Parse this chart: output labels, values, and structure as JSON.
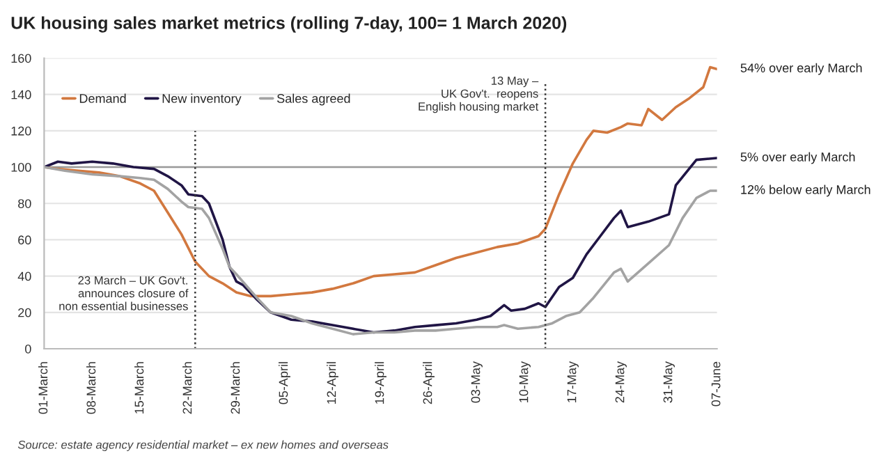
{
  "chart_data": {
    "type": "line",
    "title": "UK housing sales market metrics (rolling 7-day, 100= 1 March 2020)",
    "series": [
      {
        "name": "Demand",
        "color": "#d2783f",
        "x": [
          "2020-03-01",
          "2020-03-03",
          "2020-03-06",
          "2020-03-09",
          "2020-03-12",
          "2020-03-15",
          "2020-03-17",
          "2020-03-19",
          "2020-03-21",
          "2020-03-23",
          "2020-03-25",
          "2020-03-27",
          "2020-03-29",
          "2020-03-31",
          "2020-04-03",
          "2020-04-06",
          "2020-04-09",
          "2020-04-12",
          "2020-04-15",
          "2020-04-18",
          "2020-04-21",
          "2020-04-24",
          "2020-04-27",
          "2020-04-30",
          "2020-05-03",
          "2020-05-06",
          "2020-05-09",
          "2020-05-12",
          "2020-05-13",
          "2020-05-15",
          "2020-05-17",
          "2020-05-19",
          "2020-05-20",
          "2020-05-22",
          "2020-05-24",
          "2020-05-25",
          "2020-05-27",
          "2020-05-28",
          "2020-05-30",
          "2020-06-01",
          "2020-06-03",
          "2020-06-05",
          "2020-06-06",
          "2020-06-07"
        ],
        "values": [
          100,
          99,
          98,
          97,
          95,
          91,
          87,
          75,
          63,
          48,
          40,
          36,
          31,
          29,
          29,
          30,
          31,
          33,
          36,
          40,
          41,
          42,
          46,
          50,
          53,
          56,
          58,
          62,
          66,
          85,
          102,
          115,
          120,
          119,
          122,
          124,
          123,
          132,
          126,
          133,
          138,
          144,
          155,
          154
        ]
      },
      {
        "name": "New inventory",
        "color": "#201545",
        "x": [
          "2020-03-01",
          "2020-03-03",
          "2020-03-05",
          "2020-03-08",
          "2020-03-11",
          "2020-03-14",
          "2020-03-17",
          "2020-03-19",
          "2020-03-21",
          "2020-03-22",
          "2020-03-24",
          "2020-03-25",
          "2020-03-27",
          "2020-03-28",
          "2020-03-29",
          "2020-03-30",
          "2020-04-01",
          "2020-04-03",
          "2020-04-06",
          "2020-04-09",
          "2020-04-12",
          "2020-04-15",
          "2020-04-18",
          "2020-04-21",
          "2020-04-24",
          "2020-04-27",
          "2020-04-30",
          "2020-05-03",
          "2020-05-05",
          "2020-05-07",
          "2020-05-08",
          "2020-05-10",
          "2020-05-12",
          "2020-05-13",
          "2020-05-15",
          "2020-05-17",
          "2020-05-19",
          "2020-05-21",
          "2020-05-23",
          "2020-05-24",
          "2020-05-25",
          "2020-05-28",
          "2020-05-31",
          "2020-06-01",
          "2020-06-04",
          "2020-06-07"
        ],
        "values": [
          100,
          103,
          102,
          103,
          102,
          100,
          99,
          95,
          90,
          85,
          84,
          80,
          60,
          45,
          37,
          35,
          27,
          20,
          16,
          15,
          13,
          11,
          9,
          10,
          12,
          13,
          14,
          16,
          18,
          24,
          21,
          22,
          25,
          23,
          34,
          39,
          52,
          62,
          72,
          76,
          67,
          70,
          74,
          90,
          104,
          105
        ]
      },
      {
        "name": "Sales agreed",
        "color": "#a3a3a3",
        "x": [
          "2020-03-01",
          "2020-03-04",
          "2020-03-08",
          "2020-03-12",
          "2020-03-15",
          "2020-03-17",
          "2020-03-19",
          "2020-03-21",
          "2020-03-22",
          "2020-03-24",
          "2020-03-25",
          "2020-03-27",
          "2020-03-28",
          "2020-03-29",
          "2020-04-01",
          "2020-04-03",
          "2020-04-06",
          "2020-04-09",
          "2020-04-12",
          "2020-04-15",
          "2020-04-18",
          "2020-04-21",
          "2020-04-24",
          "2020-04-27",
          "2020-04-30",
          "2020-05-03",
          "2020-05-06",
          "2020-05-07",
          "2020-05-09",
          "2020-05-12",
          "2020-05-14",
          "2020-05-16",
          "2020-05-18",
          "2020-05-20",
          "2020-05-23",
          "2020-05-24",
          "2020-05-25",
          "2020-05-28",
          "2020-05-31",
          "2020-06-02",
          "2020-06-04",
          "2020-06-06",
          "2020-06-07"
        ],
        "values": [
          100,
          98,
          96,
          95,
          94,
          93,
          88,
          81,
          78,
          77,
          72,
          55,
          45,
          41,
          28,
          20,
          18,
          14,
          11,
          8,
          9,
          9,
          10,
          10,
          11,
          12,
          12,
          13,
          11,
          12,
          14,
          18,
          20,
          28,
          42,
          44,
          37,
          47,
          57,
          72,
          83,
          87,
          87
        ]
      }
    ],
    "xlim": [
      "2020-03-01",
      "2020-06-07"
    ],
    "xticks": [
      {
        "value": "2020-03-01",
        "label": "01-March"
      },
      {
        "value": "2020-03-08",
        "label": "08-March"
      },
      {
        "value": "2020-03-15",
        "label": "15-March"
      },
      {
        "value": "2020-03-22",
        "label": "22-March"
      },
      {
        "value": "2020-03-29",
        "label": "29-March"
      },
      {
        "value": "2020-04-05",
        "label": "05-April"
      },
      {
        "value": "2020-04-12",
        "label": "12-April"
      },
      {
        "value": "2020-04-19",
        "label": "19-April"
      },
      {
        "value": "2020-04-26",
        "label": "26-April"
      },
      {
        "value": "2020-05-03",
        "label": "03-May"
      },
      {
        "value": "2020-05-10",
        "label": "10-May"
      },
      {
        "value": "2020-05-17",
        "label": "17-May"
      },
      {
        "value": "2020-05-24",
        "label": "24-May"
      },
      {
        "value": "2020-05-31",
        "label": "31-May"
      },
      {
        "value": "2020-06-07",
        "label": "07-June"
      }
    ],
    "ylim": [
      0,
      160
    ],
    "yticks": [
      0,
      20,
      40,
      60,
      80,
      100,
      120,
      140,
      160
    ],
    "grid": "y",
    "legend": "top left",
    "ref_lines": [
      {
        "axis": "x",
        "value": "2020-03-23",
        "label": "23 March – UK Gov't.\nannounces closure of\nnon essential businesses",
        "color": "#333333",
        "line_style": "dotted"
      },
      {
        "axis": "x",
        "value": "2020-05-13",
        "label": "13 May –\nUK Gov't.  reopens\nEnglish housing market",
        "color": "#333333",
        "line_style": "dotted"
      },
      {
        "axis": "y",
        "value": 100,
        "color": "#999999",
        "line_style": "solid"
      }
    ],
    "annotations": [
      {
        "text": "54% over early March",
        "x": "2020-06-07",
        "y": 154
      },
      {
        "text": "5% over early March",
        "x": "2020-06-07",
        "y": 105
      },
      {
        "text": "12% below early March",
        "x": "2020-06-07",
        "y": 87
      },
      "Source: estate agency residential market – ex new homes and overseas"
    ]
  }
}
